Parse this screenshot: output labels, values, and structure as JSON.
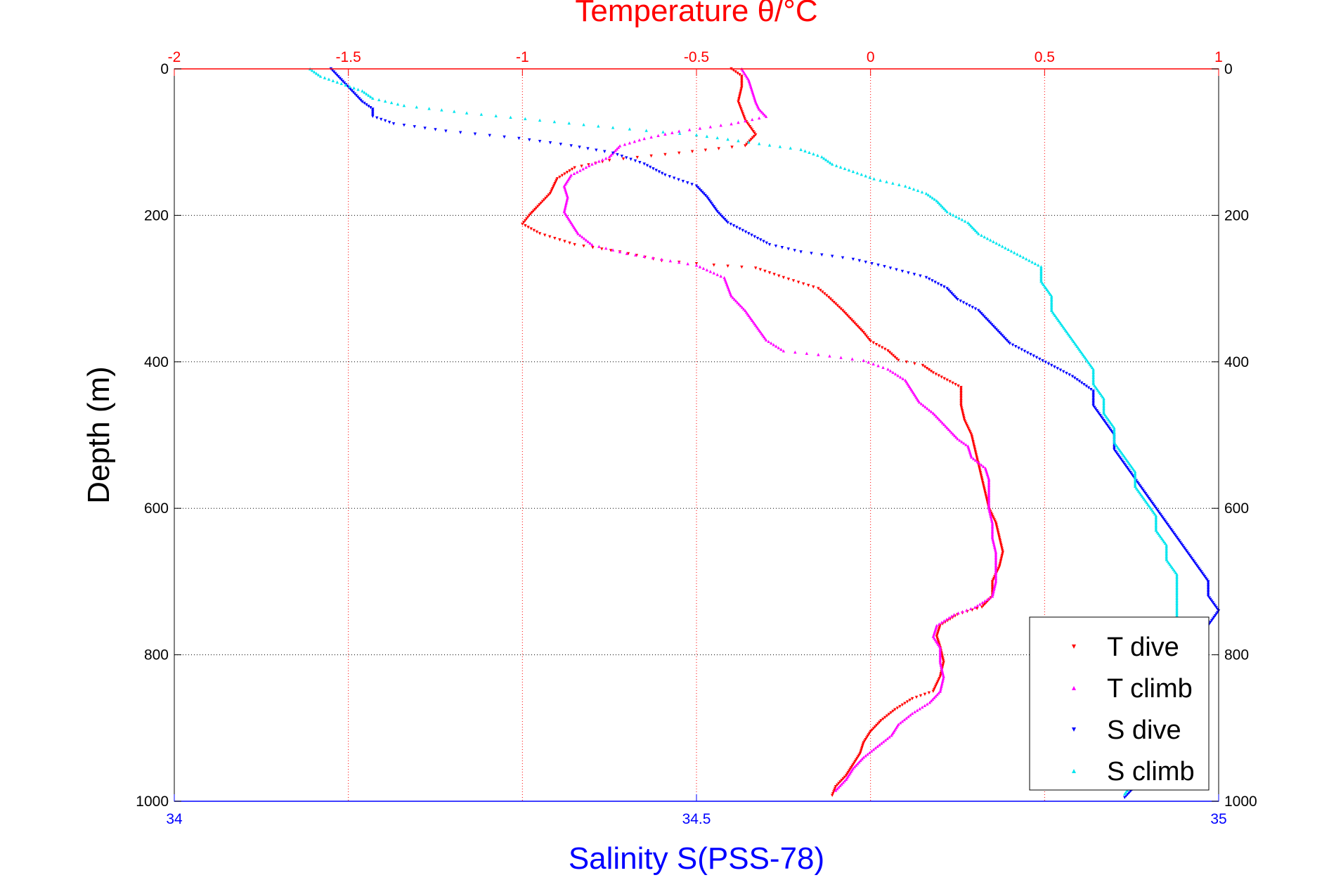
{
  "chart_data": {
    "type": "scatter",
    "title": "Temperature θ/°C",
    "ylabel": "Depth (m)",
    "xlabel_bottom": "Salinity S(PSS-78)",
    "top_axis": {
      "range": [
        -2,
        1
      ],
      "ticks": [
        -2,
        -1.5,
        -1,
        -0.5,
        0,
        0.5,
        1
      ],
      "tick_labels": [
        "-2",
        "-1.5",
        "-1",
        "-0.5",
        "0",
        "0.5",
        "1"
      ],
      "color": "#ff0000"
    },
    "bottom_axis": {
      "range": [
        34,
        35
      ],
      "ticks": [
        34,
        34.5,
        35
      ],
      "tick_labels": [
        "34",
        "34.5",
        "35"
      ],
      "color": "#0000ff"
    },
    "y_axis": {
      "range": [
        0,
        1000
      ],
      "reversed": true,
      "ticks": [
        0,
        200,
        400,
        600,
        800,
        1000
      ],
      "tick_labels": [
        "0",
        "200",
        "400",
        "600",
        "800",
        "1000"
      ]
    },
    "grid": true,
    "legend_position": "bottom-right",
    "series": [
      {
        "name": "T dive",
        "axis": "top",
        "color": "#ff0000",
        "marker": "triangle-down",
        "points": [
          [
            -0.4,
            0
          ],
          [
            -0.37,
            10
          ],
          [
            -0.37,
            25
          ],
          [
            -0.38,
            45
          ],
          [
            -0.36,
            70
          ],
          [
            -0.33,
            90
          ],
          [
            -0.36,
            105
          ],
          [
            -0.55,
            115
          ],
          [
            -0.75,
            125
          ],
          [
            -0.85,
            135
          ],
          [
            -0.9,
            150
          ],
          [
            -0.92,
            170
          ],
          [
            -0.96,
            190
          ],
          [
            -0.98,
            200
          ],
          [
            -1.0,
            212
          ],
          [
            -0.95,
            225
          ],
          [
            -0.85,
            240
          ],
          [
            -0.72,
            250
          ],
          [
            -0.6,
            262
          ],
          [
            -0.45,
            268
          ],
          [
            -0.33,
            272
          ],
          [
            -0.25,
            285
          ],
          [
            -0.15,
            300
          ],
          [
            -0.12,
            312
          ],
          [
            -0.08,
            330
          ],
          [
            -0.05,
            345
          ],
          [
            -0.02,
            360
          ],
          [
            0.0,
            372
          ],
          [
            0.05,
            385
          ],
          [
            0.08,
            398
          ],
          [
            0.15,
            405
          ],
          [
            0.18,
            415
          ],
          [
            0.22,
            425
          ],
          [
            0.26,
            435
          ],
          [
            0.26,
            460
          ],
          [
            0.27,
            480
          ],
          [
            0.29,
            500
          ],
          [
            0.3,
            520
          ],
          [
            0.31,
            540
          ],
          [
            0.32,
            560
          ],
          [
            0.33,
            580
          ],
          [
            0.34,
            600
          ],
          [
            0.36,
            620
          ],
          [
            0.37,
            640
          ],
          [
            0.38,
            660
          ],
          [
            0.37,
            680
          ],
          [
            0.35,
            700
          ],
          [
            0.35,
            720
          ],
          [
            0.32,
            735
          ],
          [
            0.25,
            745
          ],
          [
            0.2,
            760
          ],
          [
            0.19,
            775
          ],
          [
            0.2,
            790
          ],
          [
            0.21,
            810
          ],
          [
            0.2,
            830
          ],
          [
            0.18,
            850
          ],
          [
            0.12,
            860
          ],
          [
            0.07,
            875
          ],
          [
            0.03,
            890
          ],
          [
            0.0,
            905
          ],
          [
            -0.02,
            920
          ],
          [
            -0.03,
            935
          ],
          [
            -0.05,
            950
          ],
          [
            -0.07,
            965
          ],
          [
            -0.1,
            980
          ],
          [
            -0.11,
            992
          ]
        ]
      },
      {
        "name": "T climb",
        "axis": "top",
        "color": "#ff00ff",
        "marker": "triangle-up",
        "points": [
          [
            -0.37,
            0
          ],
          [
            -0.35,
            15
          ],
          [
            -0.34,
            30
          ],
          [
            -0.33,
            45
          ],
          [
            -0.32,
            55
          ],
          [
            -0.3,
            65
          ],
          [
            -0.4,
            75
          ],
          [
            -0.55,
            85
          ],
          [
            -0.65,
            95
          ],
          [
            -0.72,
            105
          ],
          [
            -0.75,
            120
          ],
          [
            -0.8,
            130
          ],
          [
            -0.86,
            145
          ],
          [
            -0.88,
            160
          ],
          [
            -0.87,
            175
          ],
          [
            -0.88,
            195
          ],
          [
            -0.86,
            210
          ],
          [
            -0.84,
            225
          ],
          [
            -0.8,
            240
          ],
          [
            -0.7,
            252
          ],
          [
            -0.6,
            260
          ],
          [
            -0.5,
            268
          ],
          [
            -0.42,
            285
          ],
          [
            -0.4,
            310
          ],
          [
            -0.36,
            330
          ],
          [
            -0.33,
            350
          ],
          [
            -0.3,
            370
          ],
          [
            -0.25,
            385
          ],
          [
            -0.15,
            390
          ],
          [
            -0.02,
            398
          ],
          [
            0.05,
            410
          ],
          [
            0.1,
            425
          ],
          [
            0.12,
            440
          ],
          [
            0.14,
            455
          ],
          [
            0.18,
            470
          ],
          [
            0.22,
            490
          ],
          [
            0.25,
            505
          ],
          [
            0.28,
            515
          ],
          [
            0.29,
            530
          ],
          [
            0.33,
            545
          ],
          [
            0.34,
            560
          ],
          [
            0.34,
            580
          ],
          [
            0.34,
            600
          ],
          [
            0.35,
            620
          ],
          [
            0.35,
            640
          ],
          [
            0.36,
            660
          ],
          [
            0.36,
            680
          ],
          [
            0.36,
            700
          ],
          [
            0.35,
            720
          ],
          [
            0.3,
            735
          ],
          [
            0.24,
            745
          ],
          [
            0.19,
            760
          ],
          [
            0.18,
            775
          ],
          [
            0.2,
            790
          ],
          [
            0.2,
            810
          ],
          [
            0.21,
            830
          ],
          [
            0.2,
            850
          ],
          [
            0.17,
            865
          ],
          [
            0.12,
            880
          ],
          [
            0.08,
            895
          ],
          [
            0.06,
            910
          ],
          [
            0.02,
            925
          ],
          [
            -0.02,
            940
          ],
          [
            -0.05,
            955
          ],
          [
            -0.07,
            970
          ],
          [
            -0.1,
            985
          ]
        ]
      },
      {
        "name": "S dive",
        "axis": "bottom",
        "color": "#0000ff",
        "marker": "triangle-down",
        "points": [
          [
            34.15,
            0
          ],
          [
            34.16,
            15
          ],
          [
            34.17,
            30
          ],
          [
            34.18,
            45
          ],
          [
            34.19,
            55
          ],
          [
            34.19,
            65
          ],
          [
            34.21,
            75
          ],
          [
            34.26,
            85
          ],
          [
            34.33,
            95
          ],
          [
            34.38,
            105
          ],
          [
            34.42,
            115
          ],
          [
            34.45,
            130
          ],
          [
            34.47,
            145
          ],
          [
            34.5,
            160
          ],
          [
            34.51,
            175
          ],
          [
            34.52,
            195
          ],
          [
            34.53,
            210
          ],
          [
            34.55,
            225
          ],
          [
            34.57,
            240
          ],
          [
            34.6,
            250
          ],
          [
            34.65,
            260
          ],
          [
            34.68,
            270
          ],
          [
            34.72,
            285
          ],
          [
            34.74,
            300
          ],
          [
            34.75,
            315
          ],
          [
            34.77,
            330
          ],
          [
            34.78,
            345
          ],
          [
            34.79,
            360
          ],
          [
            34.8,
            375
          ],
          [
            34.82,
            390
          ],
          [
            34.84,
            405
          ],
          [
            34.86,
            420
          ],
          [
            34.88,
            440
          ],
          [
            34.88,
            460
          ],
          [
            34.89,
            480
          ],
          [
            34.9,
            500
          ],
          [
            34.9,
            520
          ],
          [
            34.91,
            540
          ],
          [
            34.92,
            560
          ],
          [
            34.93,
            580
          ],
          [
            34.94,
            600
          ],
          [
            34.95,
            620
          ],
          [
            34.96,
            640
          ],
          [
            34.97,
            660
          ],
          [
            34.98,
            680
          ],
          [
            34.99,
            700
          ],
          [
            34.99,
            720
          ],
          [
            35.0,
            740
          ],
          [
            34.99,
            760
          ],
          [
            34.98,
            780
          ],
          [
            34.98,
            800
          ],
          [
            34.97,
            820
          ],
          [
            34.96,
            840
          ],
          [
            34.95,
            860
          ],
          [
            34.94,
            880
          ],
          [
            34.94,
            900
          ],
          [
            34.93,
            920
          ],
          [
            34.93,
            940
          ],
          [
            34.92,
            960
          ],
          [
            34.92,
            980
          ],
          [
            34.91,
            995
          ]
        ]
      },
      {
        "name": "S climb",
        "axis": "bottom",
        "color": "#00e5ee",
        "marker": "triangle-up",
        "points": [
          [
            34.13,
            0
          ],
          [
            34.14,
            10
          ],
          [
            34.16,
            20
          ],
          [
            34.18,
            30
          ],
          [
            34.19,
            40
          ],
          [
            34.22,
            50
          ],
          [
            34.28,
            60
          ],
          [
            34.35,
            70
          ],
          [
            34.42,
            80
          ],
          [
            34.5,
            90
          ],
          [
            34.55,
            100
          ],
          [
            34.6,
            110
          ],
          [
            34.62,
            120
          ],
          [
            34.63,
            130
          ],
          [
            34.65,
            140
          ],
          [
            34.67,
            150
          ],
          [
            34.7,
            160
          ],
          [
            34.72,
            170
          ],
          [
            34.73,
            180
          ],
          [
            34.74,
            195
          ],
          [
            34.76,
            210
          ],
          [
            34.77,
            225
          ],
          [
            34.79,
            240
          ],
          [
            34.81,
            255
          ],
          [
            34.83,
            270
          ],
          [
            34.83,
            290
          ],
          [
            34.84,
            310
          ],
          [
            34.84,
            330
          ],
          [
            34.85,
            350
          ],
          [
            34.86,
            370
          ],
          [
            34.87,
            390
          ],
          [
            34.88,
            410
          ],
          [
            34.88,
            430
          ],
          [
            34.89,
            450
          ],
          [
            34.89,
            470
          ],
          [
            34.9,
            490
          ],
          [
            34.9,
            510
          ],
          [
            34.91,
            530
          ],
          [
            34.92,
            550
          ],
          [
            34.92,
            570
          ],
          [
            34.93,
            590
          ],
          [
            34.94,
            610
          ],
          [
            34.94,
            630
          ],
          [
            34.95,
            650
          ],
          [
            34.95,
            670
          ],
          [
            34.96,
            690
          ],
          [
            34.96,
            710
          ],
          [
            34.96,
            730
          ],
          [
            34.96,
            750
          ],
          [
            34.96,
            770
          ],
          [
            34.96,
            790
          ],
          [
            34.96,
            810
          ],
          [
            34.95,
            830
          ],
          [
            34.95,
            850
          ],
          [
            34.94,
            870
          ],
          [
            34.94,
            890
          ],
          [
            34.93,
            910
          ],
          [
            34.93,
            930
          ],
          [
            34.92,
            950
          ],
          [
            34.92,
            970
          ],
          [
            34.91,
            990
          ]
        ]
      }
    ]
  }
}
